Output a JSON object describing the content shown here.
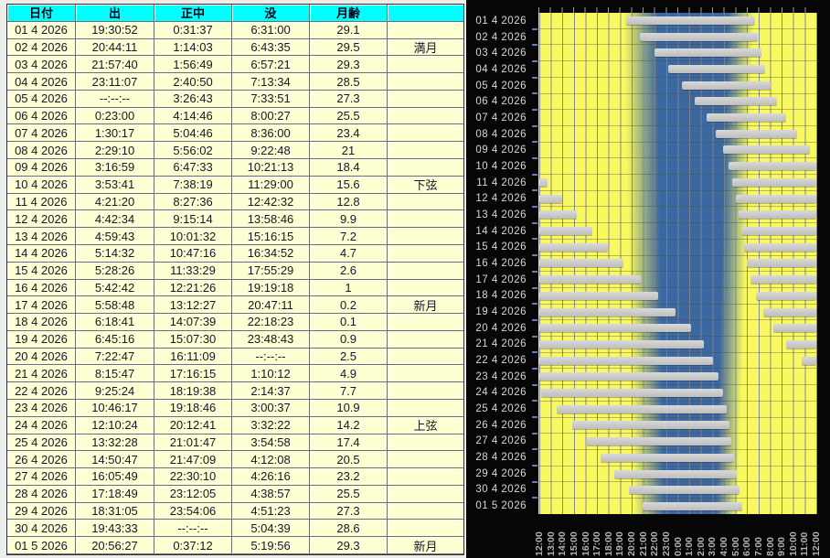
{
  "colors": {
    "header_bg": "#00ffff",
    "cell_bg": "#ffffd4",
    "table_text": "#15152b",
    "day": "#f8f862",
    "night": "#3c68a2",
    "bar": "#c7c7c7",
    "panel_bg": "#060606",
    "chart_label": "#d8d8d8",
    "time_label": "#b4b4b4",
    "tick": "#5c80b4"
  },
  "table": {
    "headers": [
      "日付",
      "出",
      "正中",
      "没",
      "月齢",
      ""
    ],
    "rows": [
      [
        "01 4 2026",
        "19:30:52",
        "0:31:37",
        "6:31:00",
        "29.1",
        ""
      ],
      [
        "02 4 2026",
        "20:44:11",
        "1:14:03",
        "6:43:35",
        "29.5",
        "満月"
      ],
      [
        "03 4 2026",
        "21:57:40",
        "1:56:49",
        "6:57:21",
        "29.3",
        ""
      ],
      [
        "04 4 2026",
        "23:11:07",
        "2:40:50",
        "7:13:34",
        "28.5",
        ""
      ],
      [
        "05 4 2026",
        "--:--:--",
        "3:26:43",
        "7:33:51",
        "27.3",
        ""
      ],
      [
        "06 4 2026",
        "0:23:00",
        "4:14:46",
        "8:00:27",
        "25.5",
        ""
      ],
      [
        "07 4 2026",
        "1:30:17",
        "5:04:46",
        "8:36:00",
        "23.4",
        ""
      ],
      [
        "08 4 2026",
        "2:29:10",
        "5:56:02",
        "9:22:48",
        "21",
        ""
      ],
      [
        "09 4 2026",
        "3:16:59",
        "6:47:33",
        "10:21:13",
        "18.4",
        ""
      ],
      [
        "10 4 2026",
        "3:53:41",
        "7:38:19",
        "11:29:00",
        "15.6",
        "下弦"
      ],
      [
        "11 4 2026",
        "4:21:20",
        "8:27:36",
        "12:42:32",
        "12.8",
        ""
      ],
      [
        "12 4 2026",
        "4:42:34",
        "9:15:14",
        "13:58:46",
        "9.9",
        ""
      ],
      [
        "13 4 2026",
        "4:59:43",
        "10:01:32",
        "15:16:15",
        "7.2",
        ""
      ],
      [
        "14 4 2026",
        "5:14:32",
        "10:47:16",
        "16:34:52",
        "4.7",
        ""
      ],
      [
        "15 4 2026",
        "5:28:26",
        "11:33:29",
        "17:55:29",
        "2.6",
        ""
      ],
      [
        "16 4 2026",
        "5:42:42",
        "12:21:26",
        "19:19:18",
        "1",
        ""
      ],
      [
        "17 4 2026",
        "5:58:48",
        "13:12:27",
        "20:47:11",
        "0.2",
        "新月"
      ],
      [
        "18 4 2026",
        "6:18:41",
        "14:07:39",
        "22:18:23",
        "0.1",
        ""
      ],
      [
        "19 4 2026",
        "6:45:16",
        "15:07:30",
        "23:48:43",
        "0.9",
        ""
      ],
      [
        "20 4 2026",
        "7:22:47",
        "16:11:09",
        "--:--:--",
        "2.5",
        ""
      ],
      [
        "21 4 2026",
        "8:15:47",
        "17:16:15",
        "1:10:12",
        "4.9",
        ""
      ],
      [
        "22 4 2026",
        "9:25:24",
        "18:19:38",
        "2:14:37",
        "7.7",
        ""
      ],
      [
        "23 4 2026",
        "10:46:17",
        "19:18:46",
        "3:00:37",
        "10.9",
        ""
      ],
      [
        "24 4 2026",
        "12:10:24",
        "20:12:41",
        "3:32:22",
        "14.2",
        "上弦"
      ],
      [
        "25 4 2026",
        "13:32:28",
        "21:01:47",
        "3:54:58",
        "17.4",
        ""
      ],
      [
        "26 4 2026",
        "14:50:47",
        "21:47:09",
        "4:12:08",
        "20.5",
        ""
      ],
      [
        "27 4 2026",
        "16:05:49",
        "22:30:10",
        "4:26:16",
        "23.2",
        ""
      ],
      [
        "28 4 2026",
        "17:18:49",
        "23:12:05",
        "4:38:57",
        "25.5",
        ""
      ],
      [
        "29 4 2026",
        "18:31:05",
        "23:54:06",
        "4:51:23",
        "27.3",
        ""
      ],
      [
        "30 4 2026",
        "19:43:33",
        "--:--:--",
        "5:04:39",
        "28.6",
        ""
      ],
      [
        "01 5 2026",
        "20:56:27",
        "0:37:12",
        "5:19:56",
        "29.3",
        "新月"
      ]
    ]
  },
  "chart_data": {
    "type": "bar",
    "description": "Moon above-horizon intervals per night, hours measured from 12:00 to 12:00 next day; yellow = day sky, blue = night sky",
    "x_axis_hours": [
      "12:00",
      "13:00",
      "14:00",
      "15:00",
      "16:00",
      "17:00",
      "18:00",
      "19:00",
      "20:00",
      "21:00",
      "22:00",
      "23:00",
      "0:00",
      "1:00",
      "2:00",
      "3:00",
      "4:00",
      "5:00",
      "6:00",
      "7:00",
      "8:00",
      "9:00",
      "10:00",
      "11:00",
      "12:00"
    ],
    "x_range_hours": [
      0,
      24
    ],
    "night_band": {
      "top": {
        "day_end": 7.3,
        "night_start": 10.2,
        "night_end": 16.3,
        "day_start": 18.6
      },
      "bottom": {
        "day_end": 8.2,
        "night_start": 10.8,
        "night_end": 15.3,
        "day_start": 17.2
      }
    },
    "rows": [
      {
        "date": "01 4 2026",
        "bars": [
          [
            7.51,
            18.73
          ]
        ]
      },
      {
        "date": "02 4 2026",
        "bars": [
          [
            8.74,
            18.96
          ]
        ]
      },
      {
        "date": "03 4 2026",
        "bars": [
          [
            9.96,
            19.23
          ]
        ]
      },
      {
        "date": "04 4 2026",
        "bars": [
          [
            11.19,
            19.56
          ]
        ]
      },
      {
        "date": "05 4 2026",
        "bars": [
          [
            12.38,
            20.01
          ]
        ]
      },
      {
        "date": "06 4 2026",
        "bars": [
          [
            13.5,
            20.6
          ]
        ]
      },
      {
        "date": "07 4 2026",
        "bars": [
          [
            14.49,
            21.38
          ]
        ]
      },
      {
        "date": "08 4 2026",
        "bars": [
          [
            15.28,
            22.35
          ]
        ]
      },
      {
        "date": "09 4 2026",
        "bars": [
          [
            15.89,
            23.48
          ]
        ]
      },
      {
        "date": "10 4 2026",
        "bars": [
          [
            16.36,
            24
          ]
        ]
      },
      {
        "date": "11 4 2026",
        "bars": [
          [
            0,
            0.71
          ],
          [
            16.71,
            24
          ]
        ]
      },
      {
        "date": "12 4 2026",
        "bars": [
          [
            0,
            1.98
          ],
          [
            17.0,
            24
          ]
        ]
      },
      {
        "date": "13 4 2026",
        "bars": [
          [
            0,
            3.27
          ],
          [
            17.24,
            24
          ]
        ]
      },
      {
        "date": "14 4 2026",
        "bars": [
          [
            0,
            4.58
          ],
          [
            17.47,
            24
          ]
        ]
      },
      {
        "date": "15 4 2026",
        "bars": [
          [
            0,
            5.92
          ],
          [
            17.71,
            24
          ]
        ]
      },
      {
        "date": "16 4 2026",
        "bars": [
          [
            0,
            7.32
          ],
          [
            17.98,
            24
          ]
        ]
      },
      {
        "date": "17 4 2026",
        "bars": [
          [
            0,
            8.79
          ],
          [
            18.31,
            24
          ]
        ]
      },
      {
        "date": "18 4 2026",
        "bars": [
          [
            0,
            10.31
          ],
          [
            18.75,
            24
          ]
        ]
      },
      {
        "date": "19 4 2026",
        "bars": [
          [
            0,
            11.81
          ],
          [
            19.38,
            24
          ]
        ]
      },
      {
        "date": "20 4 2026",
        "bars": [
          [
            0,
            13.17
          ],
          [
            20.26,
            24
          ]
        ]
      },
      {
        "date": "21 4 2026",
        "bars": [
          [
            0,
            14.24
          ],
          [
            21.42,
            24
          ]
        ]
      },
      {
        "date": "22 4 2026",
        "bars": [
          [
            0,
            15.01
          ],
          [
            22.77,
            24
          ]
        ]
      },
      {
        "date": "23 4 2026",
        "bars": [
          [
            0,
            15.54
          ]
        ]
      },
      {
        "date": "24 4 2026",
        "bars": [
          [
            0.17,
            15.92
          ]
        ]
      },
      {
        "date": "25 4 2026",
        "bars": [
          [
            1.54,
            16.2
          ]
        ]
      },
      {
        "date": "26 4 2026",
        "bars": [
          [
            2.85,
            16.44
          ]
        ]
      },
      {
        "date": "27 4 2026",
        "bars": [
          [
            4.1,
            16.65
          ]
        ]
      },
      {
        "date": "28 4 2026",
        "bars": [
          [
            5.31,
            16.86
          ]
        ]
      },
      {
        "date": "29 4 2026",
        "bars": [
          [
            6.52,
            17.08
          ]
        ]
      },
      {
        "date": "30 4 2026",
        "bars": [
          [
            7.73,
            17.33
          ]
        ]
      },
      {
        "date": "01 5 2026",
        "bars": [
          [
            8.94,
            17.55
          ]
        ]
      }
    ]
  }
}
